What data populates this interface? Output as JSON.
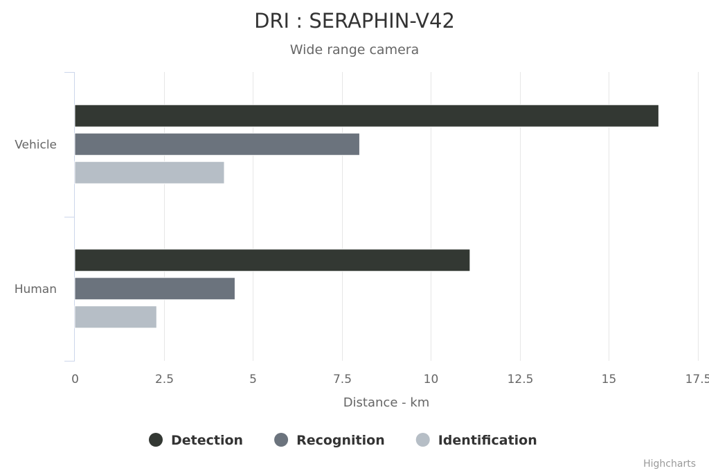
{
  "chart_data": {
    "type": "bar",
    "orientation": "horizontal",
    "title": "DRI : SERAPHIN-V42",
    "subtitle": "Wide range camera",
    "categories": [
      "Vehicle",
      "Human"
    ],
    "series": [
      {
        "name": "Detection",
        "color": "#333833",
        "values": [
          16.4,
          11.1
        ]
      },
      {
        "name": "Recognition",
        "color": "#6b737d",
        "values": [
          8.0,
          4.5
        ]
      },
      {
        "name": "Identification",
        "color": "#b6bec6",
        "values": [
          4.2,
          2.3
        ]
      }
    ],
    "xlabel": "Distance - km",
    "ylabel": "",
    "xlim": [
      0,
      17.5
    ],
    "x_ticks": [
      "0",
      "2.5",
      "5",
      "7.5",
      "10",
      "12.5",
      "15",
      "17.5"
    ],
    "grid": true,
    "legend_position": "bottom-center",
    "credits": "Highcharts"
  }
}
